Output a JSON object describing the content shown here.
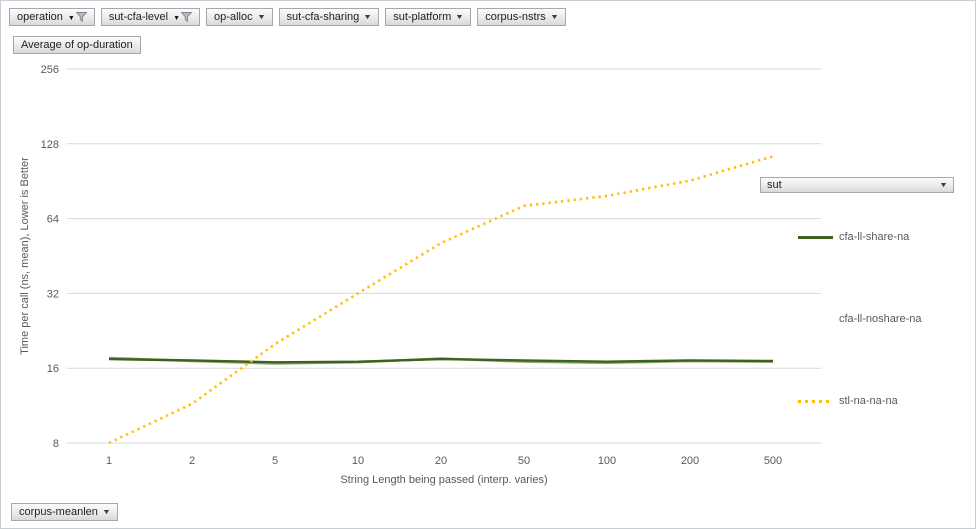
{
  "field_buttons": {
    "row_top": [
      {
        "label": "operation",
        "filtered": true
      },
      {
        "label": "sut-cfa-level",
        "filtered": true
      },
      {
        "label": "op-alloc",
        "filtered": false
      },
      {
        "label": "sut-cfa-sharing",
        "filtered": false
      },
      {
        "label": "sut-platform",
        "filtered": false
      },
      {
        "label": "corpus-nstrs",
        "filtered": false
      }
    ],
    "value_button": "Average of op-duration",
    "legend_button": "sut",
    "bottom_button": "corpus-meanlen"
  },
  "icons": {
    "dropdown_caret": "▼",
    "filter_funnel": "funnel-icon"
  },
  "chart_data": {
    "type": "line",
    "title": "Average of op-duration",
    "x_label": "String Length  being passed (interp. varies)",
    "y_label": "Time per call (ns, mean),  Lower is Better",
    "categories": [
      "1",
      "2",
      "5",
      "10",
      "20",
      "50",
      "100",
      "200",
      "500"
    ],
    "y_ticks": [
      256,
      128,
      64,
      32,
      16,
      8
    ],
    "y_scale": "log2",
    "ylim": [
      8,
      256
    ],
    "grid": "horizontal-only",
    "legend_position": "right",
    "series": [
      {
        "name": "cfa-ll-share-na",
        "color": "#3e611b",
        "style": "solid",
        "legend_swatch": "solid",
        "z": 2,
        "values": [
          17.4,
          17.2,
          16.9,
          17.0,
          17.4,
          17.2,
          17.0,
          17.2,
          17.1
        ]
      },
      {
        "name": "cfa-ll-noshare-na",
        "color": "#8ca973",
        "style": "solid",
        "legend_swatch": "none",
        "z": 1,
        "values": [
          17.6,
          17.1,
          16.7,
          16.9,
          17.5,
          17.0,
          16.8,
          17.1,
          17.0
        ]
      },
      {
        "name": "stl-na-na-na",
        "color": "#ffc000",
        "style": "dotted",
        "legend_swatch": "dotted",
        "z": 3,
        "values": [
          8,
          11.5,
          20,
          32,
          51,
          72,
          79,
          91,
          114
        ]
      }
    ]
  },
  "colors": {
    "gridline": "#d9d9d9",
    "axis_text": "#595959",
    "button_border": "#a8a8a8"
  }
}
